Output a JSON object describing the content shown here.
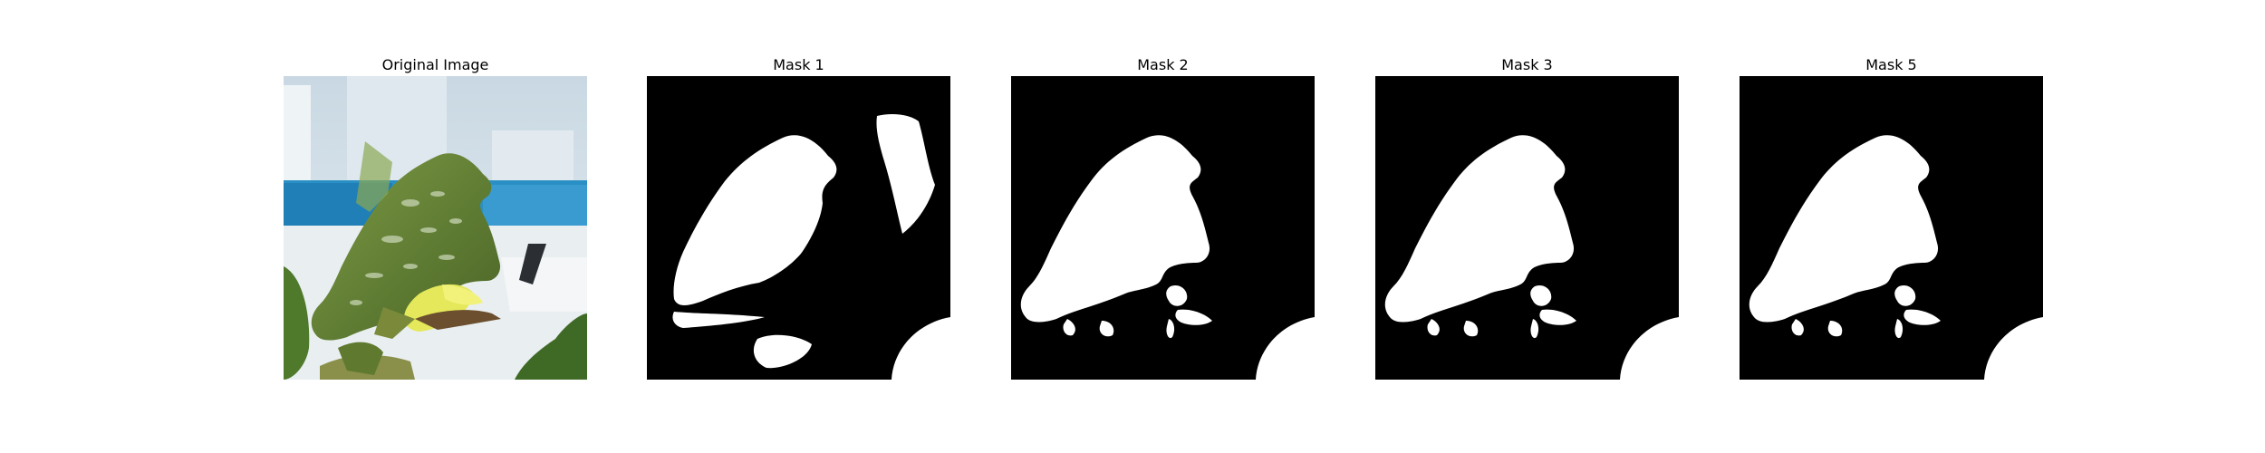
{
  "figure": {
    "panels": [
      {
        "title": "Original Image",
        "kind": "photo",
        "description_icon": "leaf-photo"
      },
      {
        "title": "Mask 1",
        "kind": "mask"
      },
      {
        "title": "Mask 2",
        "kind": "mask"
      },
      {
        "title": "Mask 3",
        "kind": "mask"
      },
      {
        "title": "Mask 5",
        "kind": "mask"
      }
    ],
    "colors": {
      "mask_background": "#000000",
      "mask_foreground": "#ffffff",
      "leaf_green": "#6f8a3c",
      "leaf_yellow": "#e4e85a",
      "wall_blue": "#2a8fc4",
      "sky_light": "#cfdce6"
    }
  }
}
